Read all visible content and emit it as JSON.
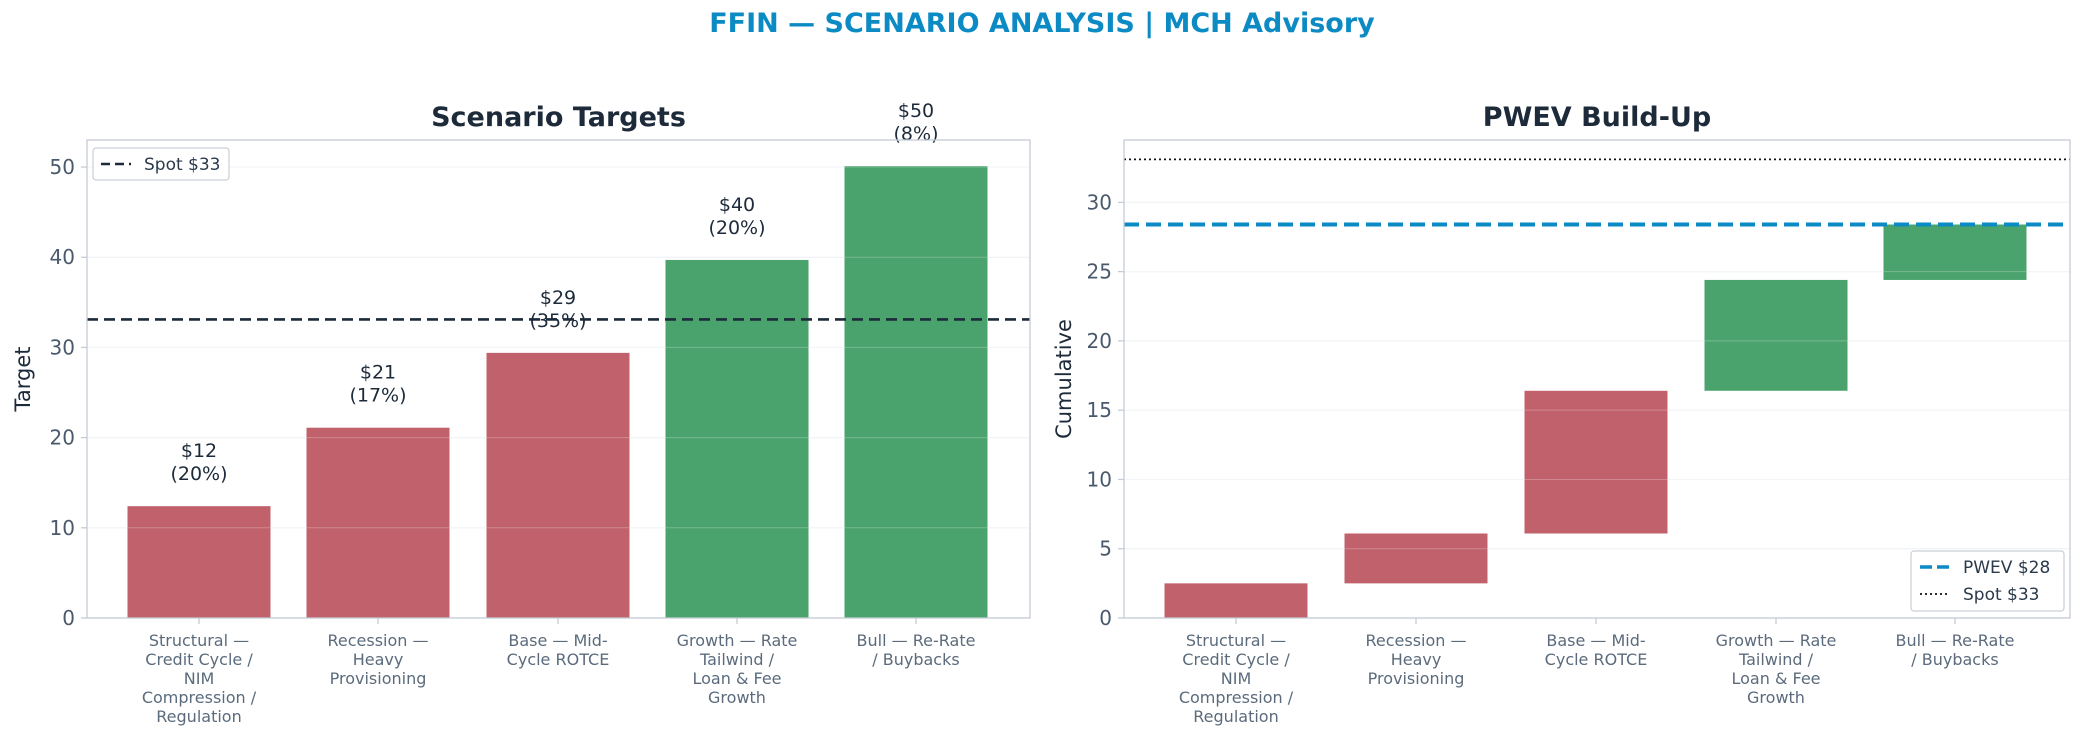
{
  "figure": {
    "title": "FFIN — SCENARIO ANALYSIS | MCH Advisory",
    "title_color": "#0b8ac4"
  },
  "colors": {
    "bear": "#c1616b",
    "bull": "#4aa36c",
    "spot_line": "#1c2a3a",
    "pwev_line": "#0b8ac4",
    "axis": "#c5ccd6",
    "grid": "#eef1f4"
  },
  "chart_data": [
    {
      "type": "bar",
      "title": "Scenario Targets",
      "ylabel": "Target",
      "xlabel": "",
      "ylim": [
        0,
        53
      ],
      "yticks": [
        0,
        10,
        20,
        30,
        40,
        50
      ],
      "grid": true,
      "categories": [
        [
          "Structural —",
          "Credit Cycle /",
          "NIM",
          "Compression /",
          "Regulation"
        ],
        [
          "Recession —",
          "Heavy",
          "Provisioning"
        ],
        [
          "Base — Mid-",
          "Cycle ROTCE"
        ],
        [
          "Growth — Rate",
          "Tailwind /",
          "Loan & Fee",
          "Growth"
        ],
        [
          "Bull — Re-Rate",
          "/ Buybacks"
        ]
      ],
      "values": [
        12.4,
        21.1,
        29.4,
        39.7,
        50.1
      ],
      "value_labels": [
        [
          "$12",
          "(20%)"
        ],
        [
          "$21",
          "(17%)"
        ],
        [
          "$29",
          "(35%)"
        ],
        [
          "$40",
          "(20%)"
        ],
        [
          "$50",
          "(8%)"
        ]
      ],
      "bar_class": [
        "bear",
        "bear",
        "bear",
        "bull",
        "bull"
      ],
      "reference_line": {
        "name": "Spot $33",
        "value": 33.1
      },
      "legend": {
        "placement": "top-left",
        "entries": [
          "Spot $33"
        ]
      }
    },
    {
      "type": "waterfall",
      "title": "PWEV Build-Up",
      "ylabel": "Cumulative",
      "xlabel": "",
      "ylim": [
        0,
        34.5
      ],
      "yticks": [
        0,
        5,
        10,
        15,
        20,
        25,
        30
      ],
      "grid": true,
      "categories": [
        [
          "Structural —",
          "Credit Cycle /",
          "NIM",
          "Compression /",
          "Regulation"
        ],
        [
          "Recession —",
          "Heavy",
          "Provisioning"
        ],
        [
          "Base — Mid-",
          "Cycle ROTCE"
        ],
        [
          "Growth — Rate",
          "Tailwind /",
          "Loan & Fee",
          "Growth"
        ],
        [
          "Bull — Re-Rate",
          "/ Buybacks"
        ]
      ],
      "segments": [
        {
          "start": 0,
          "end": 2.5
        },
        {
          "start": 2.5,
          "end": 6.1
        },
        {
          "start": 6.1,
          "end": 16.4
        },
        {
          "start": 16.4,
          "end": 24.4
        },
        {
          "start": 24.4,
          "end": 28.4
        }
      ],
      "bar_class": [
        "bear",
        "bear",
        "bear",
        "bull",
        "bull"
      ],
      "pwev_line": {
        "name": "PWEV $28",
        "value": 28.4
      },
      "spot_line": {
        "name": "Spot $33",
        "value": 33.1
      },
      "legend": {
        "placement": "bottom-right",
        "entries": [
          "PWEV $28",
          "Spot $33"
        ]
      }
    }
  ]
}
